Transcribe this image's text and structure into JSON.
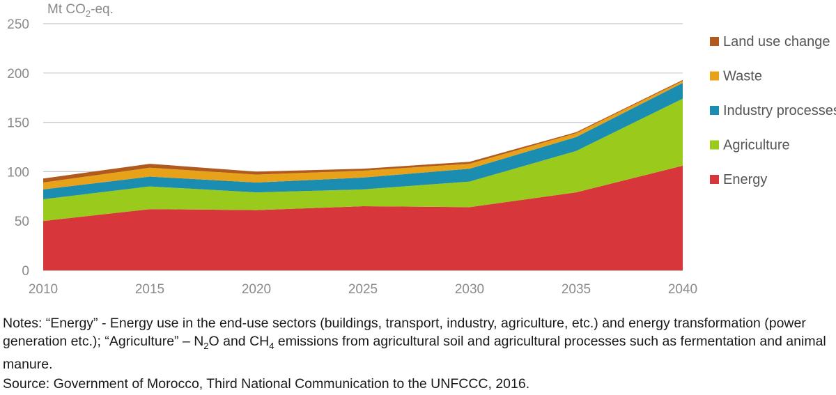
{
  "chart_data": {
    "type": "area",
    "stacked": true,
    "x": [
      2010,
      2015,
      2020,
      2025,
      2030,
      2035,
      2040
    ],
    "ylim": [
      0,
      250
    ],
    "yticks": [
      0,
      50,
      100,
      150,
      200,
      250
    ],
    "ylabel_prefix": "Mt CO",
    "ylabel_sub": "2",
    "ylabel_suffix": "-eq.",
    "legend_position": "right",
    "series": [
      {
        "name": "Energy",
        "color": "#d7373a",
        "values": [
          50,
          62,
          61,
          65,
          64,
          79,
          106
        ]
      },
      {
        "name": "Agriculture",
        "color": "#9acb1c",
        "values": [
          22,
          23,
          18,
          17,
          26,
          42,
          68
        ]
      },
      {
        "name": "Industry processes",
        "color": "#1a8db0",
        "values": [
          10,
          10,
          10,
          12,
          13,
          14,
          16
        ]
      },
      {
        "name": "Waste",
        "color": "#e8a21a",
        "values": [
          7,
          9,
          8,
          7,
          5,
          4,
          2
        ]
      },
      {
        "name": "Land use change",
        "color": "#b05a1e",
        "values": [
          4,
          4,
          3,
          2,
          2,
          1,
          1
        ]
      }
    ]
  },
  "notes": {
    "prefix": "Notes: “Energy” - Energy use in the end-use sectors (buildings, transport, industry, agriculture, etc.) and energy transformation (power generation etc.); “Agriculture” – N",
    "n2o_sub": "2",
    "middle": "O and CH",
    "ch4_sub": "4",
    "suffix": " emissions from agricultural soil and agricultural processes such as fermentation and animal manure."
  },
  "source": "Source: Government of Morocco, Third National Communication to the UNFCCC, 2016."
}
